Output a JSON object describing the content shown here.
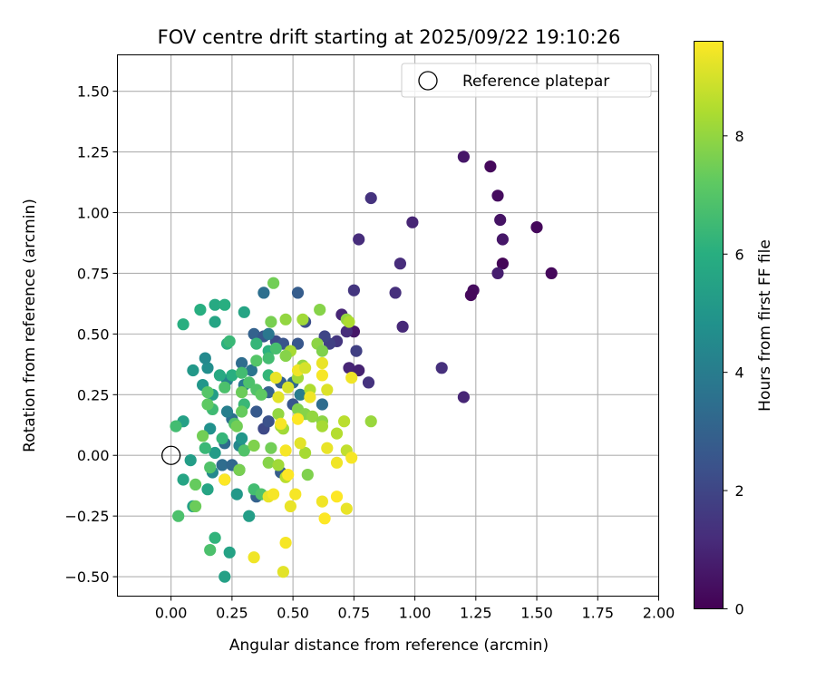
{
  "chart_data": {
    "type": "scatter",
    "title": "FOV centre drift starting at 2025/09/22 19:10:26",
    "xlabel": "Angular distance from reference (arcmin)",
    "ylabel": "Rotation from reference (arcmin)",
    "xlim": [
      -0.22,
      2.0
    ],
    "ylim": [
      -0.58,
      1.65
    ],
    "grid": true,
    "xticks": [
      0.0,
      0.25,
      0.5,
      0.75,
      1.0,
      1.25,
      1.5,
      1.75,
      2.0
    ],
    "yticks": [
      -0.5,
      -0.25,
      0.0,
      0.25,
      0.5,
      0.75,
      1.0,
      1.25,
      1.5
    ],
    "xtick_labels": [
      "0.00",
      "0.25",
      "0.50",
      "0.75",
      "1.00",
      "1.25",
      "1.50",
      "1.75",
      "2.00"
    ],
    "ytick_labels": [
      "−0.50",
      "−0.25",
      "0.00",
      "0.25",
      "0.50",
      "0.75",
      "1.00",
      "1.25",
      "1.50"
    ],
    "legend": {
      "position": "top-right",
      "entries": [
        "Reference platepar"
      ]
    },
    "reference_point": {
      "x": 0.0,
      "y": 0.0,
      "label": "Reference platepar"
    },
    "colorbar": {
      "label": "Hours from first FF file",
      "colormap": "viridis",
      "range": [
        0,
        9.6
      ],
      "ticks": [
        0,
        2,
        4,
        6,
        8
      ],
      "tick_labels": [
        "0",
        "2",
        "4",
        "6",
        "8"
      ]
    },
    "series": [
      {
        "name": "FOV centre drift",
        "points": [
          [
            1.2,
            1.23,
            0.6
          ],
          [
            1.31,
            1.19,
            0.2
          ],
          [
            1.34,
            1.07,
            0.3
          ],
          [
            1.35,
            0.97,
            0.5
          ],
          [
            1.36,
            0.89,
            0.6
          ],
          [
            1.36,
            0.79,
            0.1
          ],
          [
            1.34,
            0.75,
            0.8
          ],
          [
            1.5,
            0.94,
            0.2
          ],
          [
            1.56,
            0.75,
            0.2
          ],
          [
            1.24,
            0.68,
            0.3
          ],
          [
            1.23,
            0.66,
            0.2
          ],
          [
            0.82,
            1.06,
            1.4
          ],
          [
            0.77,
            0.89,
            1.2
          ],
          [
            0.99,
            0.96,
            1.0
          ],
          [
            0.94,
            0.79,
            1.2
          ],
          [
            0.92,
            0.67,
            1.3
          ],
          [
            0.95,
            0.53,
            1.1
          ],
          [
            0.75,
            0.68,
            1.5
          ],
          [
            0.7,
            0.58,
            1.0
          ],
          [
            0.75,
            0.51,
            0.6
          ],
          [
            0.72,
            0.51,
            1.2
          ],
          [
            0.76,
            0.43,
            1.8
          ],
          [
            0.73,
            0.36,
            1.0
          ],
          [
            0.77,
            0.35,
            0.9
          ],
          [
            0.81,
            0.3,
            1.4
          ],
          [
            1.11,
            0.36,
            1.3
          ],
          [
            1.2,
            0.24,
            1.0
          ],
          [
            0.68,
            0.47,
            1.5
          ],
          [
            0.65,
            0.46,
            1.8
          ],
          [
            0.63,
            0.49,
            2.0
          ],
          [
            0.55,
            0.55,
            2.3
          ],
          [
            0.52,
            0.67,
            2.8
          ],
          [
            0.38,
            0.67,
            3.5
          ],
          [
            0.34,
            0.5,
            3.0
          ],
          [
            0.38,
            0.49,
            2.6
          ],
          [
            0.43,
            0.47,
            2.2
          ],
          [
            0.46,
            0.46,
            2.5
          ],
          [
            0.52,
            0.46,
            2.6
          ],
          [
            0.4,
            0.5,
            3.8
          ],
          [
            0.5,
            0.21,
            2.6
          ],
          [
            0.5,
            0.3,
            3.3
          ],
          [
            0.45,
            0.3,
            2.9
          ],
          [
            0.62,
            0.21,
            3.4
          ],
          [
            0.53,
            0.25,
            4.0
          ],
          [
            0.4,
            0.26,
            3.0
          ],
          [
            0.38,
            0.11,
            2.1
          ],
          [
            0.4,
            0.14,
            2.4
          ],
          [
            0.35,
            0.18,
            2.7
          ],
          [
            0.29,
            0.38,
            3.4
          ],
          [
            0.33,
            0.35,
            3.7
          ],
          [
            0.3,
            0.29,
            3.9
          ],
          [
            0.25,
            0.15,
            3.5
          ],
          [
            0.23,
            0.18,
            4.1
          ],
          [
            0.22,
            0.05,
            3.3
          ],
          [
            0.21,
            -0.04,
            3.4
          ],
          [
            0.25,
            -0.04,
            3.2
          ],
          [
            0.28,
            -0.06,
            3.6
          ],
          [
            0.28,
            0.04,
            4.4
          ],
          [
            0.23,
            0.31,
            4.2
          ],
          [
            0.35,
            -0.17,
            3.0
          ],
          [
            0.45,
            -0.07,
            2.8
          ],
          [
            0.22,
            -0.1,
            4.6
          ],
          [
            0.17,
            -0.07,
            4.5
          ],
          [
            0.18,
            0.01,
            5.2
          ],
          [
            0.16,
            0.11,
            4.8
          ],
          [
            0.29,
            0.07,
            5.0
          ],
          [
            0.27,
            -0.16,
            5.1
          ],
          [
            0.32,
            -0.25,
            5.3
          ],
          [
            0.15,
            -0.14,
            5.6
          ],
          [
            0.09,
            -0.21,
            5.4
          ],
          [
            0.24,
            -0.4,
            5.5
          ],
          [
            0.22,
            -0.5,
            5.4
          ],
          [
            0.08,
            -0.02,
            5.3
          ],
          [
            0.05,
            0.14,
            5.4
          ],
          [
            0.05,
            -0.1,
            5.6
          ],
          [
            0.09,
            0.35,
            5.1
          ],
          [
            0.15,
            0.36,
            4.7
          ],
          [
            0.14,
            0.4,
            4.5
          ],
          [
            0.13,
            0.29,
            5.0
          ],
          [
            0.17,
            0.25,
            5.3
          ],
          [
            0.2,
            0.33,
            5.8
          ],
          [
            0.25,
            0.33,
            6.0
          ],
          [
            0.29,
            0.34,
            6.6
          ],
          [
            0.3,
            0.21,
            6.4
          ],
          [
            0.3,
            0.59,
            5.6
          ],
          [
            0.18,
            0.62,
            5.8
          ],
          [
            0.22,
            0.62,
            6.0
          ],
          [
            0.12,
            0.6,
            6.0
          ],
          [
            0.18,
            0.55,
            5.6
          ],
          [
            0.05,
            0.54,
            6.0
          ],
          [
            0.23,
            0.46,
            6.1
          ],
          [
            0.24,
            0.47,
            6.4
          ],
          [
            0.35,
            0.46,
            6.3
          ],
          [
            0.4,
            0.43,
            6.1
          ],
          [
            0.43,
            0.44,
            6.7
          ],
          [
            0.4,
            0.4,
            6.6
          ],
          [
            0.35,
            0.39,
            7.0
          ],
          [
            0.4,
            0.33,
            6.3
          ],
          [
            0.32,
            0.3,
            6.8
          ],
          [
            0.35,
            0.27,
            6.9
          ],
          [
            0.37,
            0.25,
            7.2
          ],
          [
            0.29,
            0.26,
            7.4
          ],
          [
            0.22,
            0.28,
            6.8
          ],
          [
            0.17,
            0.19,
            6.5
          ],
          [
            0.15,
            0.26,
            7.0
          ],
          [
            0.15,
            0.21,
            7.2
          ],
          [
            0.26,
            0.13,
            6.9
          ],
          [
            0.29,
            0.18,
            7.3
          ],
          [
            0.27,
            0.12,
            7.5
          ],
          [
            0.3,
            0.02,
            6.9
          ],
          [
            0.28,
            -0.06,
            7.6
          ],
          [
            0.21,
            0.07,
            6.3
          ],
          [
            0.13,
            0.08,
            7.5
          ],
          [
            0.14,
            0.03,
            6.4
          ],
          [
            0.16,
            -0.05,
            6.9
          ],
          [
            0.1,
            -0.12,
            7.3
          ],
          [
            0.03,
            -0.25,
            6.8
          ],
          [
            0.1,
            -0.21,
            7.4
          ],
          [
            0.02,
            0.12,
            6.6
          ],
          [
            0.18,
            -0.34,
            6.2
          ],
          [
            0.16,
            -0.39,
            6.8
          ],
          [
            0.34,
            -0.14,
            6.6
          ],
          [
            0.37,
            -0.16,
            6.9
          ],
          [
            0.34,
            0.04,
            7.7
          ],
          [
            0.41,
            0.03,
            7.5
          ],
          [
            0.4,
            -0.03,
            7.8
          ],
          [
            0.41,
            0.55,
            7.6
          ],
          [
            0.42,
            0.71,
            7.5
          ],
          [
            0.47,
            0.56,
            8.0
          ],
          [
            0.49,
            0.43,
            8.3
          ],
          [
            0.47,
            0.41,
            7.8
          ],
          [
            0.54,
            0.37,
            8.0
          ],
          [
            0.52,
            0.32,
            8.2
          ],
          [
            0.54,
            0.56,
            8.2
          ],
          [
            0.61,
            0.6,
            7.8
          ],
          [
            0.6,
            0.46,
            7.9
          ],
          [
            0.62,
            0.43,
            7.7
          ],
          [
            0.72,
            0.56,
            8.0
          ],
          [
            0.73,
            0.55,
            8.4
          ],
          [
            0.57,
            0.27,
            8.4
          ],
          [
            0.52,
            0.19,
            7.7
          ],
          [
            0.55,
            0.17,
            7.8
          ],
          [
            0.58,
            0.16,
            8.0
          ],
          [
            0.62,
            0.14,
            7.9
          ],
          [
            0.62,
            0.12,
            8.3
          ],
          [
            0.68,
            0.09,
            8.5
          ],
          [
            0.71,
            0.14,
            8.6
          ],
          [
            0.55,
            0.01,
            8.3
          ],
          [
            0.56,
            -0.08,
            7.7
          ],
          [
            0.46,
            0.11,
            8.2
          ],
          [
            0.44,
            0.17,
            8.0
          ],
          [
            0.45,
            0.12,
            8.3
          ],
          [
            0.44,
            -0.04,
            8.2
          ],
          [
            0.47,
            -0.09,
            8.6
          ],
          [
            0.82,
            0.14,
            8.1
          ],
          [
            0.72,
            0.02,
            8.7
          ],
          [
            0.43,
            0.32,
            9.3
          ],
          [
            0.44,
            0.24,
            9.2
          ],
          [
            0.48,
            0.28,
            9.0
          ],
          [
            0.52,
            0.35,
            9.4
          ],
          [
            0.55,
            0.36,
            9.0
          ],
          [
            0.62,
            0.33,
            9.5
          ],
          [
            0.62,
            0.38,
            9.3
          ],
          [
            0.64,
            0.27,
            9.1
          ],
          [
            0.74,
            0.32,
            9.4
          ],
          [
            0.57,
            0.24,
            9.4
          ],
          [
            0.52,
            0.15,
            9.6
          ],
          [
            0.47,
            0.02,
            9.5
          ],
          [
            0.53,
            0.05,
            9.2
          ],
          [
            0.64,
            0.03,
            9.3
          ],
          [
            0.68,
            -0.03,
            9.4
          ],
          [
            0.74,
            -0.01,
            9.5
          ],
          [
            0.4,
            -0.17,
            9.3
          ],
          [
            0.42,
            -0.16,
            9.5
          ],
          [
            0.49,
            -0.21,
            9.3
          ],
          [
            0.51,
            -0.16,
            9.5
          ],
          [
            0.62,
            -0.19,
            9.4
          ],
          [
            0.68,
            -0.17,
            9.6
          ],
          [
            0.72,
            -0.22,
            9.3
          ],
          [
            0.63,
            -0.26,
            9.6
          ],
          [
            0.47,
            -0.36,
            9.5
          ],
          [
            0.34,
            -0.42,
            9.4
          ],
          [
            0.46,
            -0.48,
            9.2
          ],
          [
            0.48,
            -0.08,
            9.6
          ],
          [
            0.22,
            -0.1,
            9.6
          ],
          [
            0.45,
            0.13,
            9.5
          ]
        ]
      }
    ]
  }
}
